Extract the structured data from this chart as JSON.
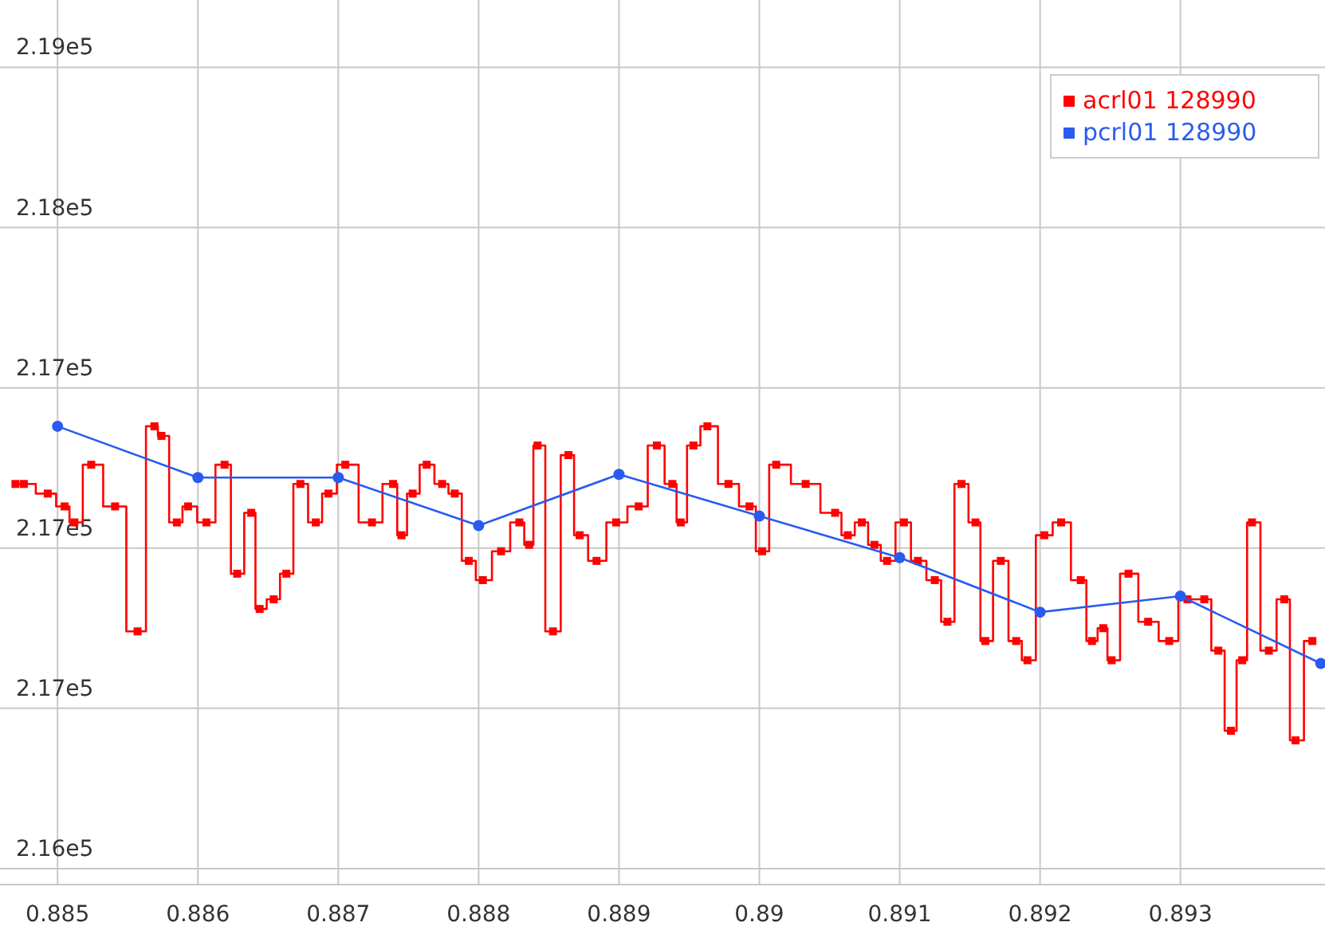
{
  "chart_data": {
    "type": "line",
    "xlim": [
      0.88459,
      0.89403
    ],
    "xticks": [
      0.885,
      0.886,
      0.887,
      0.888,
      0.889,
      0.89,
      0.891,
      0.892,
      0.893
    ],
    "ylim": [
      215950,
      218710
    ],
    "yticks": [
      {
        "value": 216000,
        "label": "2.16e5"
      },
      {
        "value": 216500,
        "label": "2.17e5"
      },
      {
        "value": 217000,
        "label": "2.17e5"
      },
      {
        "value": 217500,
        "label": "2.17e5"
      },
      {
        "value": 218000,
        "label": "2.18e5"
      },
      {
        "value": 218500,
        "label": "2.19e5"
      }
    ],
    "grid": true,
    "legend": "top right",
    "series": [
      {
        "name": "acrl01 128990",
        "type": "step",
        "marker": "square",
        "color": "#ff0000",
        "x": [
          0.8847,
          0.88476,
          0.88493,
          0.88505,
          0.88512,
          0.88524,
          0.88541,
          0.88557,
          0.88569,
          0.88574,
          0.88585,
          0.88593,
          0.88606,
          0.88619,
          0.88628,
          0.88638,
          0.88644,
          0.88654,
          0.88663,
          0.88673,
          0.88684,
          0.88693,
          0.88705,
          0.88724,
          0.88739,
          0.88745,
          0.88753,
          0.88763,
          0.88774,
          0.88783,
          0.88793,
          0.88803,
          0.88816,
          0.88829,
          0.88836,
          0.88842,
          0.88853,
          0.88864,
          0.88872,
          0.88884,
          0.88898,
          0.88914,
          0.88927,
          0.88938,
          0.88944,
          0.88953,
          0.88963,
          0.88978,
          0.88993,
          0.89002,
          0.89012,
          0.89033,
          0.89054,
          0.89063,
          0.89073,
          0.89082,
          0.89091,
          0.89103,
          0.89113,
          0.89125,
          0.89134,
          0.89144,
          0.89154,
          0.89161,
          0.89172,
          0.89183,
          0.89191,
          0.89203,
          0.89215,
          0.89229,
          0.89237,
          0.89245,
          0.89251,
          0.89263,
          0.89277,
          0.89292,
          0.89305,
          0.89317,
          0.89327,
          0.89336,
          0.89344,
          0.89351,
          0.89363,
          0.89374,
          0.89382,
          0.89394
        ],
        "values": [
          217200,
          217200,
          217170,
          217130,
          217080,
          217260,
          217130,
          216740,
          217380,
          217350,
          217080,
          217130,
          217080,
          217260,
          216920,
          217110,
          216810,
          216840,
          216920,
          217200,
          217080,
          217170,
          217260,
          217080,
          217200,
          217040,
          217170,
          217260,
          217200,
          217170,
          216960,
          216900,
          216990,
          217080,
          217010,
          217320,
          216740,
          217290,
          217040,
          216960,
          217080,
          217130,
          217320,
          217200,
          217080,
          217320,
          217380,
          217200,
          217130,
          216990,
          217260,
          217200,
          217110,
          217040,
          217080,
          217010,
          216960,
          217080,
          216960,
          216900,
          216770,
          217200,
          217080,
          216710,
          216960,
          216710,
          216650,
          217040,
          217080,
          216900,
          216710,
          216750,
          216650,
          216920,
          216770,
          216710,
          216840,
          216840,
          216680,
          216430,
          216650,
          217080,
          216680,
          216840,
          216400,
          216710
        ]
      },
      {
        "name": "pcrl01 128990",
        "type": "line",
        "marker": "circle",
        "color": "#2a5bef",
        "x": [
          0.885,
          0.886,
          0.887,
          0.888,
          0.889,
          0.89,
          0.891,
          0.892,
          0.893,
          0.894
        ],
        "values": [
          217380,
          217220,
          217220,
          217070,
          217230,
          217100,
          216970,
          216800,
          216850,
          216640
        ]
      }
    ]
  }
}
